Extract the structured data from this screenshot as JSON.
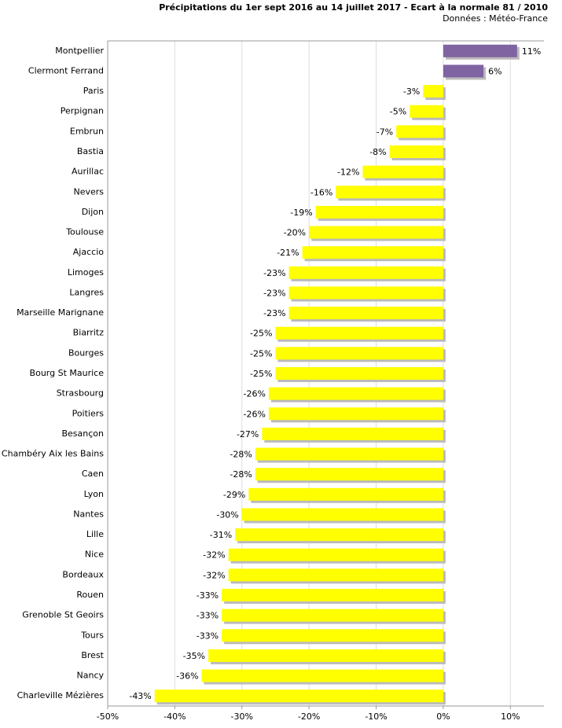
{
  "chart_data": {
    "type": "barh",
    "title": "Précipitations du 1er sept 2016 au 14 juillet 2017 - Ecart à la normale 81 / 2010",
    "subtitle": "Données : Météo-France",
    "categories": [
      "Montpellier",
      "Clermont Ferrand",
      "Paris",
      "Perpignan",
      "Embrun",
      "Bastia",
      "Aurillac",
      "Nevers",
      "Dijon",
      "Toulouse",
      "Ajaccio",
      "Limoges",
      "Langres",
      "Marseille Marignane",
      "Biarritz",
      "Bourges",
      "Bourg St Maurice",
      "Strasbourg",
      "Poitiers",
      "Besançon",
      "Chambéry Aix les Bains",
      "Caen",
      "Lyon",
      "Nantes",
      "Lille",
      "Nice",
      "Bordeaux",
      "Rouen",
      "Grenoble St Geoirs",
      "Tours",
      "Brest",
      "Nancy",
      "Charleville Mézières"
    ],
    "values": [
      11,
      6,
      -3,
      -5,
      -7,
      -8,
      -12,
      -16,
      -19,
      -20,
      -21,
      -23,
      -23,
      -23,
      -25,
      -25,
      -25,
      -26,
      -26,
      -27,
      -28,
      -28,
      -29,
      -30,
      -31,
      -32,
      -32,
      -33,
      -33,
      -33,
      -35,
      -36,
      -43
    ],
    "value_labels": [
      "11%",
      "6%",
      "-3%",
      "-5%",
      "-7%",
      "-8%",
      "-12%",
      "-16%",
      "-19%",
      "-20%",
      "-21%",
      "-23%",
      "-23%",
      "-23%",
      "-25%",
      "-25%",
      "-25%",
      "-26%",
      "-26%",
      "-27%",
      "-28%",
      "-28%",
      "-29%",
      "-30%",
      "-31%",
      "-32%",
      "-32%",
      "-33%",
      "-33%",
      "-33%",
      "-35%",
      "-36%",
      "-43%"
    ],
    "colors": [
      "#8064a2",
      "#8064a2",
      "#ffff00",
      "#ffff00",
      "#ffff00",
      "#ffff00",
      "#ffff00",
      "#ffff00",
      "#ffff00",
      "#ffff00",
      "#ffff00",
      "#ffff00",
      "#ffff00",
      "#ffff00",
      "#ffff00",
      "#ffff00",
      "#ffff00",
      "#ffff00",
      "#ffff00",
      "#ffff00",
      "#ffff00",
      "#ffff00",
      "#ffff00",
      "#ffff00",
      "#ffff00",
      "#ffff00",
      "#ffff00",
      "#ffff00",
      "#ffff00",
      "#ffff00",
      "#ffff00",
      "#ffff00",
      "#ffff00"
    ],
    "xlim": [
      -50,
      15
    ],
    "xticks": [
      {
        "value": -50,
        "label": "-50%"
      },
      {
        "value": -40,
        "label": "-40%"
      },
      {
        "value": -30,
        "label": "-30%"
      },
      {
        "value": -20,
        "label": "-20%"
      },
      {
        "value": -10,
        "label": "-10%"
      },
      {
        "value": 0,
        "label": "0%"
      },
      {
        "value": 10,
        "label": "10%"
      }
    ],
    "grid": true
  }
}
